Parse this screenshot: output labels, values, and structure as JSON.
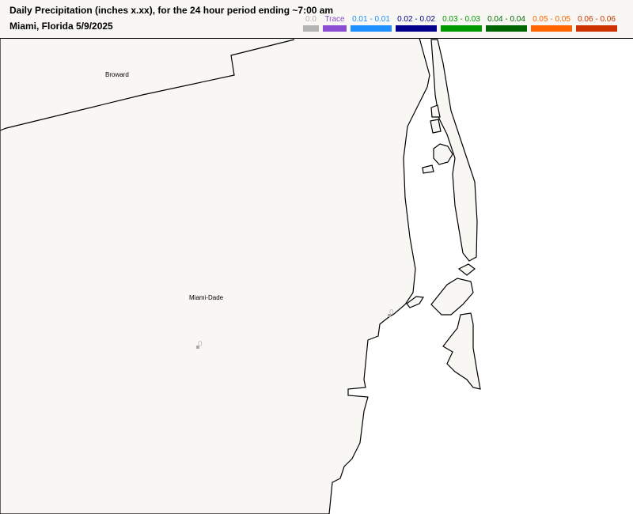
{
  "header": {
    "title": "Daily Precipitation (inches  x.xx),  for the 24 hour period ending ~7:00 am",
    "subtitle": "Miami, Florida  5/9/2025"
  },
  "legend": [
    {
      "label": "0.0",
      "color": "#b4b4b4"
    },
    {
      "label": "Trace",
      "color": "#8a4fd0"
    },
    {
      "label": "0.01 - 0.01",
      "color": "#1e90ff"
    },
    {
      "label": "0.02 - 0.02",
      "color": "#00008b"
    },
    {
      "label": "0.03 - 0.03",
      "color": "#009900"
    },
    {
      "label": "0.04 - 0.04",
      "color": "#006400"
    },
    {
      "label": "0.05 - 0.05",
      "color": "#ff6600"
    },
    {
      "label": "0.06 - 0.06",
      "color": "#cc3300"
    }
  ],
  "map": {
    "counties": [
      "Broward",
      "Miami-Dade"
    ],
    "stations": [
      {
        "value": "0"
      },
      {
        "value": "0"
      }
    ],
    "land_color": "#f8f7f3",
    "water_color": "#ffffff"
  }
}
